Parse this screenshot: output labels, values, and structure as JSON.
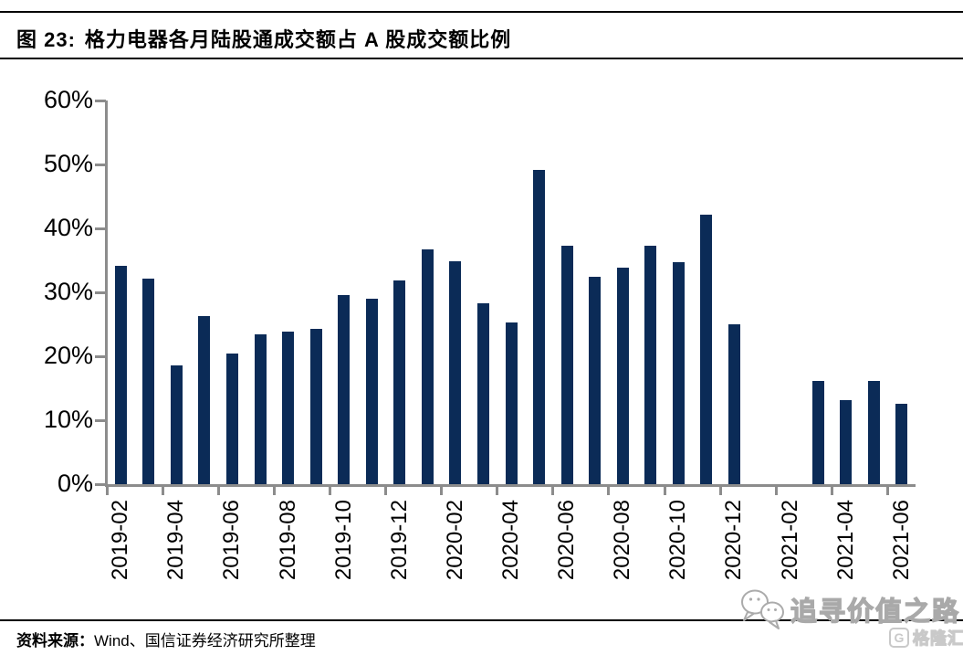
{
  "header": {
    "figure_label": "图 23:",
    "title": "格力电器各月陆股通成交额占 A 股成交额比例"
  },
  "chart_data": {
    "type": "bar",
    "title": "格力电器各月陆股通成交额占 A 股成交额比例",
    "unit": "%",
    "categories": [
      "2019-02",
      "2019-03",
      "2019-04",
      "2019-05",
      "2019-06",
      "2019-07",
      "2019-08",
      "2019-09",
      "2019-10",
      "2019-11",
      "2019-12",
      "2020-01",
      "2020-02",
      "2020-03",
      "2020-04",
      "2020-05",
      "2020-06",
      "2020-07",
      "2020-08",
      "2020-09",
      "2020-10",
      "2020-11",
      "2020-12",
      "2021-01",
      "2021-02",
      "2021-03",
      "2021-04",
      "2021-05",
      "2021-06"
    ],
    "values": [
      34.2,
      32.2,
      18.6,
      26.3,
      20.4,
      23.4,
      23.8,
      24.3,
      29.6,
      29.0,
      31.9,
      36.7,
      34.8,
      28.3,
      25.3,
      49.1,
      37.3,
      32.4,
      33.9,
      37.3,
      34.7,
      42.2,
      25.0,
      null,
      null,
      16.1,
      13.1,
      16.1,
      12.5
    ],
    "xlabel": "",
    "ylabel": "",
    "ylim": [
      0,
      60
    ],
    "y_tick_labels": [
      "0%",
      "10%",
      "20%",
      "30%",
      "40%",
      "50%",
      "60%"
    ],
    "x_tick_labels": [
      "2019-02",
      "2019-04",
      "2019-06",
      "2019-08",
      "2019-10",
      "2019-12",
      "2020-02",
      "2020-04",
      "2020-06",
      "2020-08",
      "2020-10",
      "2020-12",
      "2021-02",
      "2021-04",
      "2021-06"
    ],
    "grid": "off",
    "legend": "none"
  },
  "footer": {
    "source_label": "资料来源：",
    "source_text": "Wind、国信证券经济研究所整理"
  },
  "watermark": {
    "icon": "chat-bubbles-icon",
    "text": "追寻价值之路",
    "brand_icon_letter": "G",
    "brand_text": "格隆汇"
  },
  "colors": {
    "bar": "#0B2B57",
    "axis": "#8C8C8C",
    "watermark_gray": "#A9A9A9",
    "brand_gray": "#C9C9C9"
  }
}
